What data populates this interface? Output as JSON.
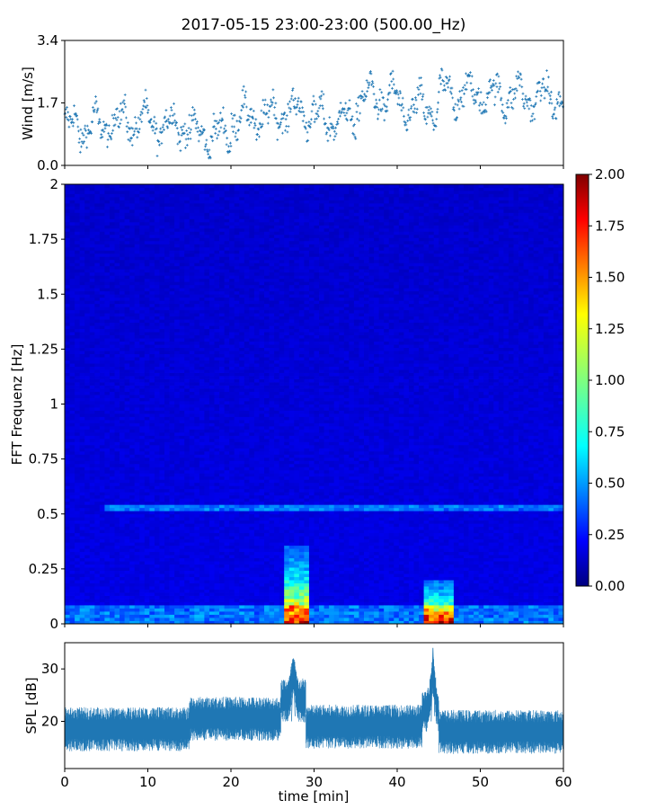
{
  "figure": {
    "title": "2017-05-15 23:00-23:00 (500.00_Hz)",
    "colors": {
      "series": "#1f77b4",
      "axes": "#000000"
    }
  },
  "chart_data": [
    {
      "type": "scatter",
      "ylabel": "Wind [m/s]",
      "xlim": [
        0,
        60
      ],
      "ylim": [
        0,
        3.4
      ],
      "yticks": [
        "0.0",
        "1.7",
        "3.4"
      ],
      "xticks": [
        0,
        10,
        20,
        30,
        40,
        50,
        60
      ],
      "marker": "+",
      "series_summary": [
        {
          "x_range": [
            0,
            5
          ],
          "mean": 1.05
        },
        {
          "x_range": [
            5,
            10
          ],
          "mean": 1.2
        },
        {
          "x_range": [
            10,
            15
          ],
          "mean": 1.1
        },
        {
          "x_range": [
            15,
            20
          ],
          "mean": 0.85
        },
        {
          "x_range": [
            20,
            25
          ],
          "mean": 1.3
        },
        {
          "x_range": [
            25,
            30
          ],
          "mean": 1.45
        },
        {
          "x_range": [
            30,
            35
          ],
          "mean": 1.25
        },
        {
          "x_range": [
            35,
            40
          ],
          "mean": 1.85
        },
        {
          "x_range": [
            40,
            45
          ],
          "mean": 1.55
        },
        {
          "x_range": [
            45,
            50
          ],
          "mean": 1.95
        },
        {
          "x_range": [
            50,
            55
          ],
          "mean": 1.9
        },
        {
          "x_range": [
            55,
            60
          ],
          "mean": 1.85
        }
      ]
    },
    {
      "type": "heatmap",
      "ylabel": "FFT Frequenz [Hz]",
      "xlim": [
        0,
        60
      ],
      "ylim": [
        0,
        2
      ],
      "yticks": [
        "0",
        "0.25",
        "0.5",
        "0.75",
        "1",
        "1.25",
        "1.5",
        "1.75",
        "2"
      ],
      "xticks": [
        0,
        10,
        20,
        30,
        40,
        50,
        60
      ],
      "colormap": "jet",
      "colorbar": {
        "range": [
          0,
          2
        ],
        "ticks": [
          "0.00",
          "0.25",
          "0.50",
          "0.75",
          "1.00",
          "1.25",
          "1.50",
          "1.75",
          "2.00"
        ]
      },
      "features": [
        {
          "label": "band near 0.5 Hz",
          "freq": 0.53,
          "x_range": [
            5,
            60
          ],
          "value": 0.5
        },
        {
          "label": "low-frequency burst",
          "freq_range": [
            0,
            0.35
          ],
          "x_range": [
            26.5,
            29.5
          ],
          "value": 1.8
        },
        {
          "label": "low-frequency burst",
          "freq_range": [
            0,
            0.2
          ],
          "x_range": [
            43,
            47
          ],
          "value": 1.9
        }
      ]
    },
    {
      "type": "line",
      "ylabel": "SPL [dB]",
      "xlabel": "time [min]",
      "xlim": [
        0,
        60
      ],
      "ylim": [
        11,
        35
      ],
      "yticks": [
        "20",
        "30"
      ],
      "xticks": [
        "0",
        "10",
        "20",
        "30",
        "40",
        "50",
        "60"
      ],
      "series_summary": [
        {
          "x_range": [
            0,
            15
          ],
          "mean": 18.5
        },
        {
          "x_range": [
            15,
            26
          ],
          "mean": 20.5
        },
        {
          "x_range": [
            26,
            29
          ],
          "mean": 24
        },
        {
          "x_range": [
            29,
            43
          ],
          "mean": 19
        },
        {
          "x_range": [
            43,
            45
          ],
          "mean": 22
        },
        {
          "x_range": [
            45,
            60
          ],
          "mean": 18
        }
      ],
      "peaks": [
        {
          "x": 27.5,
          "y": 32
        },
        {
          "x": 44.3,
          "y": 34
        }
      ]
    }
  ]
}
